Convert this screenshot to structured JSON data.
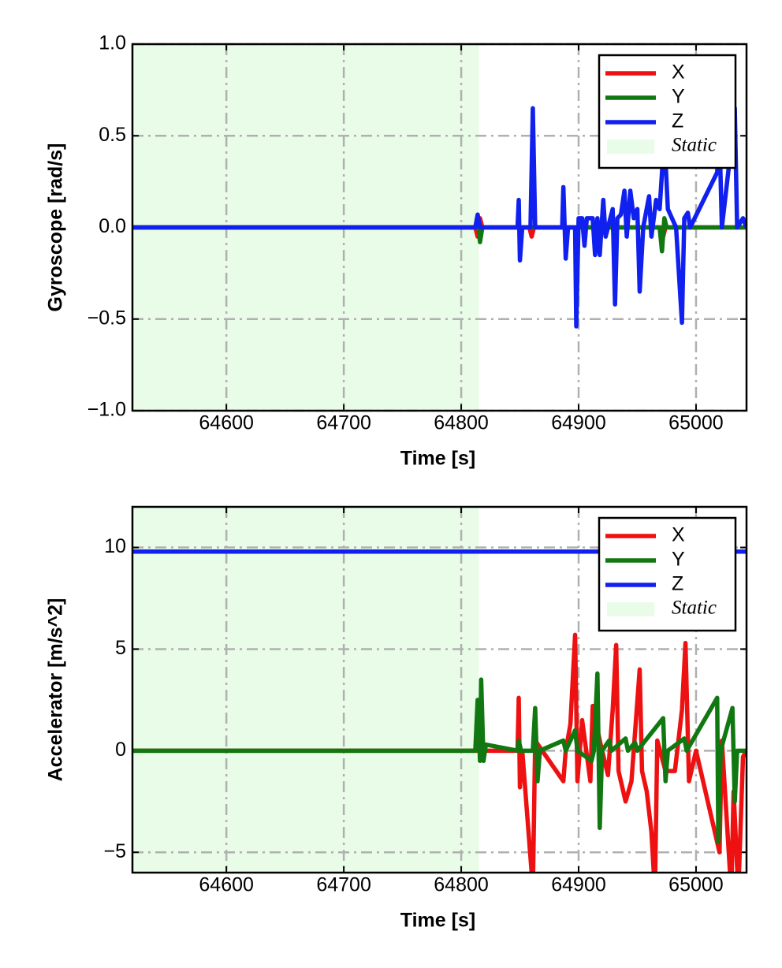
{
  "chart_data": [
    {
      "type": "line",
      "xlabel": "Time [s]",
      "ylabel": "Gyroscope [rad/s]",
      "xlim": [
        64520,
        65043
      ],
      "ylim": [
        -1,
        1
      ],
      "xticks": [
        64600,
        64700,
        64800,
        64900,
        65000
      ],
      "yticks": [
        {
          "value": -1,
          "label": "−1.0"
        },
        {
          "value": -0.5,
          "label": "−0.5"
        },
        {
          "value": 0,
          "label": "0.0"
        },
        0.5,
        {
          "value": 1,
          "label": "1.0"
        }
      ],
      "grid": true,
      "legend": "upper right",
      "static": {
        "name": "Static",
        "range": [
          64520,
          64815
        ],
        "color": "#e8fce8"
      },
      "series": [
        {
          "name": "X",
          "color": "#ee1111",
          "x": [
            64520,
            64812,
            64814,
            64816,
            64818,
            64858,
            64860,
            64862,
            64970,
            64972,
            64974,
            65043
          ],
          "values": [
            0,
            0,
            -0.05,
            0.05,
            0,
            0,
            -0.05,
            0,
            0,
            -0.05,
            0,
            0
          ]
        },
        {
          "name": "Y",
          "color": "#117711",
          "x": [
            64520,
            64812,
            64814,
            64816,
            64818,
            64969,
            64971,
            64973,
            64975,
            65043
          ],
          "values": [
            0,
            0,
            0.05,
            -0.08,
            0,
            0,
            -0.13,
            0.05,
            0,
            0
          ]
        },
        {
          "name": "Z",
          "color": "#1020ee",
          "x": [
            64520,
            64812,
            64814,
            64816,
            64848,
            64849,
            64850,
            64852,
            64859,
            64861,
            64863,
            64886,
            64887,
            64889,
            64891,
            64897,
            64898,
            64900,
            64903,
            64905,
            64907,
            64910,
            64912,
            64914,
            64916,
            64918,
            64921,
            64923,
            64929,
            64931,
            64933,
            64936,
            64939,
            64941,
            64944,
            64947,
            64950,
            64952,
            64955,
            64960,
            64962,
            64966,
            64969,
            64971,
            64973,
            64976,
            64983,
            64988,
            64990,
            64993,
            64995,
            65018,
            65020,
            65022,
            65031,
            65033,
            65035,
            65040,
            65043
          ],
          "values": [
            0,
            0,
            0.07,
            0,
            0,
            0.15,
            -0.18,
            0,
            0,
            0.65,
            0,
            0,
            0.22,
            -0.17,
            0,
            0,
            -0.54,
            0.05,
            0.05,
            -0.1,
            0.05,
            0.05,
            0.05,
            -0.15,
            0.05,
            -0.15,
            0.15,
            -0.05,
            0.1,
            -0.42,
            0.05,
            0.07,
            0.2,
            -0.05,
            0.2,
            0.05,
            0.1,
            -0.35,
            0,
            0.17,
            -0.05,
            0.15,
            0.1,
            0.3,
            0.5,
            0.1,
            0,
            -0.52,
            0.05,
            0.08,
            0,
            0.3,
            0.5,
            0,
            0.5,
            0.65,
            0,
            0.05,
            0
          ]
        }
      ]
    },
    {
      "type": "line",
      "xlabel": "Time [s]",
      "ylabel": "Accelerator [m/s^2]",
      "xlim": [
        64520,
        65043
      ],
      "ylim": [
        -6,
        12
      ],
      "xticks": [
        64600,
        64700,
        64800,
        64900,
        65000
      ],
      "yticks": [
        {
          "value": -5,
          "label": "−5"
        },
        0,
        5,
        10
      ],
      "grid": true,
      "legend": "upper right",
      "static": {
        "name": "Static",
        "range": [
          64520,
          64815
        ],
        "color": "#e8fce8"
      },
      "series": [
        {
          "name": "X",
          "color": "#ee1111",
          "x": [
            64520,
            64848,
            64849,
            64850,
            64852,
            64860,
            64861,
            64863,
            64887,
            64889,
            64893,
            64897,
            64899,
            64903,
            64910,
            64912,
            64918,
            64925,
            64929,
            64932,
            64934,
            64940,
            64945,
            64952,
            64954,
            64958,
            64962,
            64965,
            64967,
            64974,
            64982,
            64988,
            64991,
            64994,
            65000,
            65020,
            65022,
            65030,
            65032,
            65036,
            65040,
            65043
          ],
          "values": [
            0,
            0,
            2.6,
            -1.8,
            0,
            -6,
            -7,
            0.5,
            -1.5,
            0,
            1.3,
            5.7,
            -1.5,
            1.5,
            -1.5,
            2.2,
            0.5,
            -1.2,
            2,
            5.2,
            -1,
            -2.5,
            -1.5,
            4,
            -1,
            -2,
            -4,
            -7,
            0.5,
            -1,
            -1,
            2,
            5.3,
            -1.5,
            0,
            -5,
            0.5,
            -7,
            -2,
            -7,
            -0.3,
            0
          ]
        },
        {
          "name": "Y",
          "color": "#117711",
          "x": [
            64520,
            64812,
            64814,
            64816,
            64817,
            64819,
            64821,
            64848,
            64849,
            64851,
            64861,
            64863,
            64865,
            64867,
            64887,
            64889,
            64897,
            64899,
            64911,
            64913,
            64916,
            64918,
            64920,
            64926,
            64928,
            64940,
            64942,
            64948,
            64950,
            64972,
            64974,
            64976,
            64990,
            64992,
            65018,
            65019,
            65021,
            65031,
            65033,
            65035,
            65043
          ],
          "values": [
            0,
            0,
            2.5,
            -0.5,
            3.5,
            -0.5,
            0.3,
            0,
            0.5,
            0,
            0,
            2.1,
            -1.5,
            0,
            0.5,
            0,
            1,
            0,
            -0.5,
            0,
            3.8,
            -3.8,
            0,
            0.5,
            0,
            0.6,
            0,
            0.4,
            0,
            1.6,
            -1.5,
            0,
            0.6,
            0,
            2.6,
            -4.5,
            0,
            2.1,
            -2.5,
            0,
            0
          ]
        },
        {
          "name": "Z",
          "color": "#1020ee",
          "x": [
            64520,
            65043
          ],
          "values": [
            9.8,
            9.8
          ]
        }
      ]
    }
  ]
}
